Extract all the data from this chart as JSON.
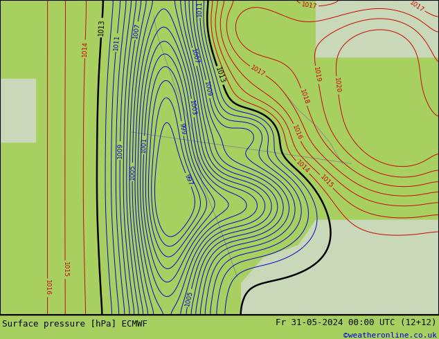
{
  "title_left": "Surface pressure [hPa] ECMWF",
  "title_right": "Fr 31-05-2024 00:00 UTC (12+12)",
  "credit": "©weatheronline.co.uk",
  "bg_land_color": "#a8d060",
  "bg_sea_color": "#d8e8d0",
  "border_color": "#000000",
  "coast_color": "#888888",
  "text_color_black": "#000000",
  "text_color_red": "#cc0000",
  "text_color_blue": "#0000cc",
  "credit_color": "#0000cc",
  "figsize": [
    6.34,
    4.9
  ],
  "dpi": 100,
  "bottom_bar_color": "#ffffff",
  "bottom_bar_height": 0.072,
  "black_contour_lw": 1.8,
  "red_contour_lw": 0.7,
  "blue_contour_lw": 0.7,
  "label_fontsize": 6.5
}
